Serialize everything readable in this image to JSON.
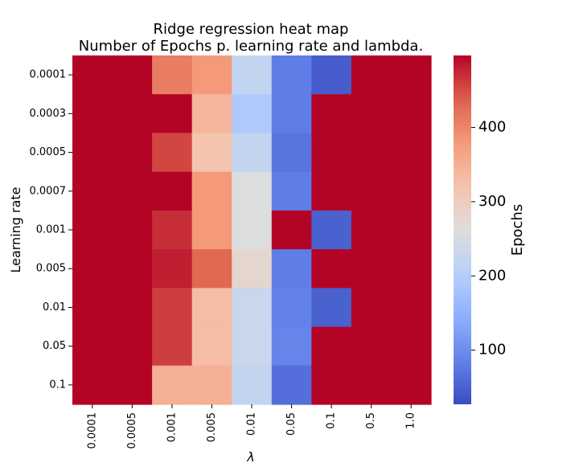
{
  "chart_data": {
    "type": "heatmap",
    "title": "Ridge regression heat map",
    "subtitle": "Number of Epochs p. learning rate and lambda.",
    "xlabel": "λ",
    "ylabel": "Learning rate",
    "x_categories": [
      "0.0001",
      "0.0005",
      "0.001",
      "0.005",
      "0.01",
      "0.05",
      "0.1",
      "0.5",
      "1.0"
    ],
    "y_categories": [
      "0.0001",
      "0.0003",
      "0.0005",
      "0.0007",
      "0.001",
      "0.005",
      "0.01",
      "0.05",
      "0.1"
    ],
    "values": [
      [
        500,
        500,
        410,
        380,
        220,
        80,
        45,
        500,
        500
      ],
      [
        500,
        500,
        500,
        340,
        190,
        80,
        500,
        500,
        500
      ],
      [
        500,
        500,
        455,
        320,
        220,
        70,
        500,
        500,
        500
      ],
      [
        500,
        500,
        500,
        380,
        260,
        80,
        500,
        500,
        500
      ],
      [
        500,
        500,
        470,
        380,
        260,
        500,
        50,
        500,
        500
      ],
      [
        500,
        500,
        480,
        430,
        280,
        80,
        500,
        500,
        500
      ],
      [
        500,
        500,
        460,
        330,
        230,
        85,
        50,
        500,
        500
      ],
      [
        500,
        500,
        460,
        330,
        230,
        90,
        500,
        500,
        500
      ],
      [
        500,
        500,
        350,
        350,
        220,
        65,
        500,
        500,
        500
      ]
    ],
    "colorbar": {
      "label": "Epochs",
      "range": [
        27,
        497
      ],
      "ticks": [
        100,
        200,
        300,
        400
      ],
      "colormap": "coolwarm"
    },
    "grid": false
  }
}
